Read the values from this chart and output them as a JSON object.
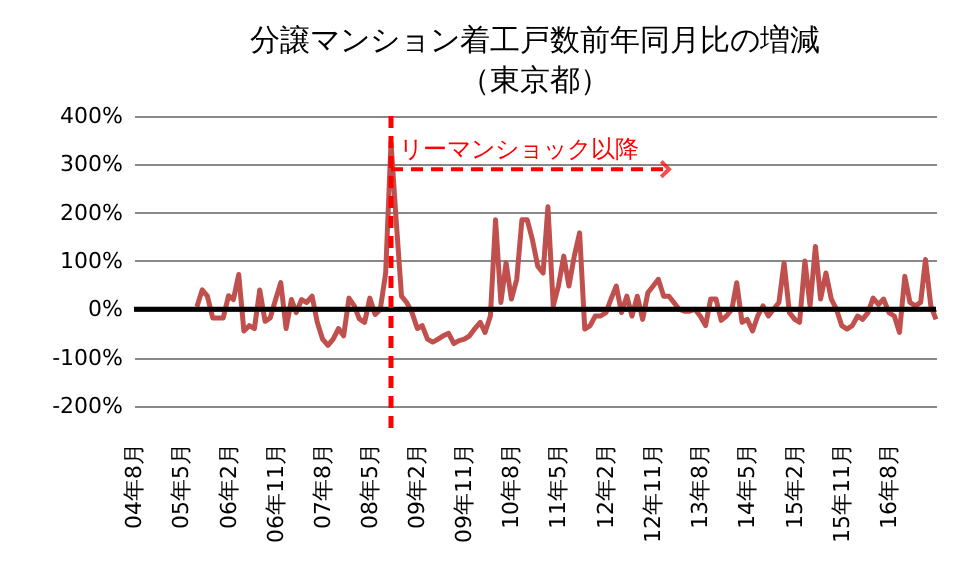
{
  "chart_data": {
    "type": "line",
    "title": [
      "分譲マンション着工戸数前年同月比の増減",
      "（東京都）"
    ],
    "x": [
      "2005-08",
      "2005-09",
      "2005-10",
      "2005-11",
      "2005-12",
      "2006-01",
      "2006-02",
      "2006-03",
      "2006-04",
      "2006-05",
      "2006-06",
      "2006-07",
      "2006-08",
      "2006-09",
      "2006-10",
      "2006-11",
      "2006-12",
      "2007-01",
      "2007-02",
      "2007-03",
      "2007-04",
      "2007-05",
      "2007-06",
      "2007-07",
      "2007-08",
      "2007-09",
      "2007-10",
      "2007-11",
      "2007-12",
      "2008-01",
      "2008-02",
      "2008-03",
      "2008-04",
      "2008-05",
      "2008-06",
      "2008-07",
      "2008-08",
      "2008-09",
      "2008-10",
      "2008-11",
      "2008-12",
      "2009-01",
      "2009-02",
      "2009-03",
      "2009-04",
      "2009-05",
      "2009-06",
      "2009-07",
      "2009-08",
      "2009-09",
      "2009-10",
      "2009-11",
      "2009-12",
      "2010-01",
      "2010-02",
      "2010-03",
      "2010-04",
      "2010-05",
      "2010-06",
      "2010-07",
      "2010-08",
      "2010-09",
      "2010-10",
      "2010-11",
      "2010-12",
      "2011-01",
      "2011-02",
      "2011-03",
      "2011-04",
      "2011-05",
      "2011-06",
      "2011-07",
      "2011-08",
      "2011-09",
      "2011-10",
      "2011-11",
      "2011-12",
      "2012-01",
      "2012-02",
      "2012-03",
      "2012-04",
      "2012-05",
      "2012-06",
      "2012-07",
      "2012-08",
      "2012-09",
      "2012-10",
      "2012-11",
      "2012-12",
      "2013-01",
      "2013-02",
      "2013-03",
      "2013-04",
      "2013-05",
      "2013-06",
      "2013-07",
      "2013-08",
      "2013-09",
      "2013-10",
      "2013-11",
      "2013-12",
      "2014-01",
      "2014-02",
      "2014-03",
      "2014-04",
      "2014-05",
      "2014-06",
      "2014-07",
      "2014-08",
      "2014-09",
      "2014-10",
      "2014-11",
      "2014-12",
      "2015-01",
      "2015-02",
      "2015-03",
      "2015-04",
      "2015-05",
      "2015-06",
      "2015-07",
      "2015-08",
      "2015-09",
      "2015-10",
      "2015-11",
      "2015-12",
      "2016-01",
      "2016-02",
      "2016-03",
      "2016-04",
      "2016-05",
      "2016-06",
      "2016-07",
      "2016-08",
      "2016-09",
      "2016-10",
      "2016-11",
      "2016-12",
      "2017-01",
      "2017-02",
      "2017-03",
      "2017-04",
      "2017-05"
    ],
    "series": [
      {
        "color": "#c0504d",
        "values": [
          5,
          40,
          27,
          -18,
          -18,
          -18,
          28,
          20,
          72,
          -45,
          -34,
          -40,
          40,
          -25,
          -18,
          20,
          55,
          -40,
          20,
          -7,
          20,
          14,
          27,
          -27,
          -62,
          -75,
          -62,
          -40,
          -55,
          23,
          7,
          -20,
          -27,
          23,
          -11,
          0,
          75,
          345,
          185,
          27,
          14,
          -7,
          -40,
          -34,
          -62,
          -68,
          -62,
          -55,
          -50,
          -71,
          -65,
          -62,
          -55,
          -40,
          -27,
          -48,
          -14,
          185,
          14,
          96,
          21,
          62,
          185,
          185,
          144,
          89,
          75,
          212,
          7,
          48,
          110,
          48,
          110,
          158,
          -41,
          -34,
          -14,
          -14,
          -7,
          21,
          48,
          -7,
          27,
          -14,
          27,
          -21,
          34,
          48,
          62,
          27,
          27,
          14,
          0,
          -4,
          -4,
          0,
          -14,
          -34,
          21,
          21,
          -23,
          -14,
          0,
          55,
          -27,
          -21,
          -45,
          -14,
          7,
          -14,
          0,
          14,
          96,
          -7,
          -21,
          -27,
          100,
          7,
          130,
          21,
          75,
          21,
          0,
          -34,
          -41,
          -34,
          -14,
          -21,
          -7,
          23,
          10,
          21,
          -7,
          -14,
          -48,
          68,
          14,
          7,
          14,
          103,
          7,
          -21
        ]
      }
    ],
    "xlim": [
      "2004-08",
      "2017-05"
    ],
    "xticks": [
      {
        "value": "2004-08",
        "label": "04年8月"
      },
      {
        "value": "2005-05",
        "label": "05年5月"
      },
      {
        "value": "2006-02",
        "label": "06年2月"
      },
      {
        "value": "2006-11",
        "label": "06年11月"
      },
      {
        "value": "2007-08",
        "label": "07年8月"
      },
      {
        "value": "2008-05",
        "label": "08年5月"
      },
      {
        "value": "2009-02",
        "label": "09年2月"
      },
      {
        "value": "2009-11",
        "label": "09年11月"
      },
      {
        "value": "2010-08",
        "label": "10年8月"
      },
      {
        "value": "2011-05",
        "label": "11年5月"
      },
      {
        "value": "2012-02",
        "label": "12年2月"
      },
      {
        "value": "2012-11",
        "label": "12年11月"
      },
      {
        "value": "2013-08",
        "label": "13年8月"
      },
      {
        "value": "2014-05",
        "label": "14年5月"
      },
      {
        "value": "2015-02",
        "label": "15年2月"
      },
      {
        "value": "2015-11",
        "label": "15年11月"
      },
      {
        "value": "2016-08",
        "label": "16年8月"
      }
    ],
    "ylim": [
      -250,
      400
    ],
    "yticks": [
      {
        "value": -200,
        "label": "-200%"
      },
      {
        "value": -100,
        "label": "-100%"
      },
      {
        "value": 0,
        "label": "0%"
      },
      {
        "value": 100,
        "label": "100%"
      },
      {
        "value": 200,
        "label": "200%"
      },
      {
        "value": 300,
        "label": "300%"
      },
      {
        "value": 400,
        "label": "400%"
      }
    ],
    "grid": "y",
    "ref_lines": [
      {
        "axis": "y",
        "value": 0,
        "color": "#000000",
        "line_style": "solid"
      },
      {
        "axis": "x",
        "value": "2008-09",
        "color": "#ff0000",
        "line_style": "dashed"
      }
    ],
    "annotations": [
      {
        "text": "リーマンショック以降",
        "x": "2008-09",
        "y": 290
      }
    ]
  }
}
